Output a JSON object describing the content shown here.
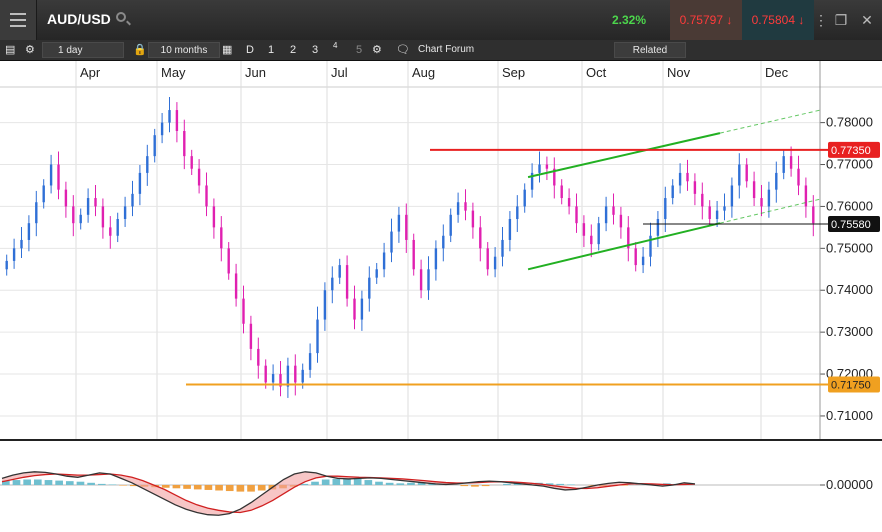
{
  "header": {
    "symbol": "AUD/USD",
    "change": "2.32%",
    "sell_price": "0.75797",
    "buy_price": "0.75804"
  },
  "toolbar": {
    "interval": "1 day",
    "range": "10 months",
    "periods": [
      "D",
      "1",
      "2",
      "3",
      "4",
      "5"
    ],
    "forum_label": "Chart Forum",
    "related_label": "Related"
  },
  "colors": {
    "bull": "#2f6fd6",
    "bear": "#e020b0",
    "resistance": "#e82020",
    "support": "#f0a020",
    "channel": "#22b022"
  },
  "chart_data": [
    {
      "type": "candlestick",
      "title": "",
      "x_labels": [
        "Apr",
        "May",
        "Jun",
        "Jul",
        "Aug",
        "Sep",
        "Oct",
        "Nov",
        "Dec"
      ],
      "y_ticks": [
        "0.78000",
        "0.77000",
        "0.76000",
        "0.75000",
        "0.74000",
        "0.73000",
        "0.72000",
        "0.71000"
      ],
      "ylim": [
        0.7045,
        0.7885
      ],
      "closes": [
        0.747,
        0.75,
        0.752,
        0.756,
        0.761,
        0.765,
        0.77,
        0.764,
        0.76,
        0.756,
        0.758,
        0.762,
        0.76,
        0.755,
        0.753,
        0.757,
        0.76,
        0.763,
        0.768,
        0.772,
        0.777,
        0.78,
        0.783,
        0.778,
        0.772,
        0.769,
        0.765,
        0.76,
        0.755,
        0.75,
        0.744,
        0.738,
        0.732,
        0.726,
        0.722,
        0.718,
        0.72,
        0.717,
        0.722,
        0.718,
        0.721,
        0.725,
        0.733,
        0.74,
        0.743,
        0.746,
        0.738,
        0.733,
        0.738,
        0.743,
        0.745,
        0.749,
        0.754,
        0.758,
        0.752,
        0.745,
        0.74,
        0.745,
        0.75,
        0.753,
        0.758,
        0.761,
        0.759,
        0.755,
        0.75,
        0.745,
        0.748,
        0.752,
        0.757,
        0.76,
        0.764,
        0.768,
        0.77,
        0.769,
        0.765,
        0.762,
        0.76,
        0.756,
        0.753,
        0.751,
        0.756,
        0.76,
        0.758,
        0.755,
        0.75,
        0.746,
        0.748,
        0.753,
        0.757,
        0.762,
        0.765,
        0.768,
        0.766,
        0.763,
        0.76,
        0.757,
        0.759,
        0.76,
        0.765,
        0.77,
        0.766,
        0.762,
        0.76,
        0.764,
        0.768,
        0.772,
        0.769,
        0.765,
        0.76,
        0.756
      ],
      "resistance_level": 0.7735,
      "support_level": 0.7175,
      "last_price": 0.7558,
      "resistance_label": "0.77350",
      "last_label": "0.75580",
      "support_label": "0.71750",
      "channel_upper": [
        [
          0.644,
          0.767
        ],
        [
          0.878,
          0.7775
        ]
      ],
      "channel_lower": [
        [
          0.644,
          0.745
        ],
        [
          0.878,
          0.756
        ]
      ],
      "channel_extension_x": 1.0
    },
    {
      "type": "macd",
      "y_ticks": [
        "0.00000"
      ],
      "histogram": [
        0.4,
        0.45,
        0.5,
        0.5,
        0.45,
        0.4,
        0.35,
        0.3,
        0.2,
        0.1,
        0.05,
        -0.05,
        -0.1,
        -0.15,
        -0.2,
        -0.25,
        -0.3,
        -0.35,
        -0.4,
        -0.45,
        -0.5,
        -0.55,
        -0.6,
        -0.6,
        -0.5,
        -0.4,
        -0.3,
        -0.15,
        0.1,
        0.3,
        0.5,
        0.55,
        0.6,
        0.55,
        0.45,
        0.3,
        0.2,
        0.15,
        0.2,
        0.25,
        0.2,
        0.1,
        0.0,
        -0.1,
        -0.15,
        -0.1,
        0.0,
        0.1,
        0.15,
        0.2,
        0.2,
        0.15,
        0.1,
        0.05,
        0.0,
        -0.05,
        -0.1,
        -0.1,
        -0.05,
        0.0,
        0.05,
        0.1,
        0.15,
        0.1,
        0.05
      ],
      "macd_line": [
        0.6,
        0.9,
        1.1,
        1.2,
        1.15,
        1.0,
        0.8,
        0.7,
        0.9,
        1.1,
        1.0,
        0.6,
        0.2,
        -0.3,
        -0.8,
        -1.3,
        -1.8,
        -2.2,
        -2.5,
        -2.7,
        -2.75,
        -2.6,
        -2.2,
        -1.6,
        -0.9,
        -0.2,
        0.5,
        1.0,
        1.2,
        1.1,
        0.8,
        0.6,
        0.55,
        0.6,
        0.65,
        0.6,
        0.5,
        0.4,
        0.3,
        0.2,
        0.1,
        0.05,
        0.1,
        0.2,
        0.3,
        0.35,
        0.3,
        0.2,
        0.1,
        0.0,
        -0.1,
        -0.3,
        -0.45,
        -0.4,
        -0.2,
        0.0,
        0.15,
        0.25,
        0.2,
        0.1,
        0.0,
        -0.1,
        0.0,
        0.2,
        0.1
      ],
      "signal_line": [
        0.3,
        0.5,
        0.7,
        0.85,
        0.95,
        1.0,
        0.95,
        0.9,
        0.9,
        0.95,
        1.0,
        0.9,
        0.7,
        0.4,
        0.0,
        -0.4,
        -0.9,
        -1.4,
        -1.8,
        -2.1,
        -2.3,
        -2.45,
        -2.5,
        -2.3,
        -1.9,
        -1.4,
        -0.8,
        -0.2,
        0.3,
        0.65,
        0.8,
        0.8,
        0.75,
        0.7,
        0.68,
        0.65,
        0.6,
        0.55,
        0.48,
        0.4,
        0.3,
        0.22,
        0.18,
        0.18,
        0.22,
        0.27,
        0.3,
        0.28,
        0.22,
        0.15,
        0.05,
        -0.08,
        -0.2,
        -0.3,
        -0.32,
        -0.25,
        -0.12,
        0.0,
        0.1,
        0.12,
        0.1,
        0.05,
        0.02,
        0.05,
        0.08
      ]
    }
  ]
}
